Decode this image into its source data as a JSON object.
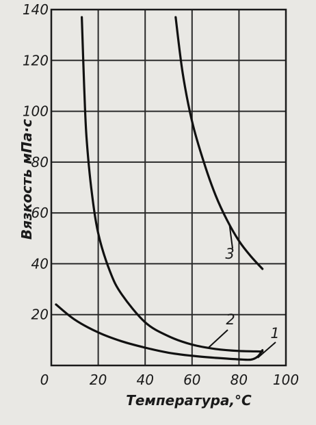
{
  "chart_data": {
    "type": "line",
    "title": "",
    "xlabel": "Температура,°С",
    "ylabel": "Вязкость мПа·с",
    "xlim": [
      0,
      100
    ],
    "ylim": [
      0,
      140
    ],
    "x_ticks": [
      "0",
      "20",
      "40",
      "60",
      "80",
      "100"
    ],
    "y_ticks": [
      "20",
      "40",
      "60",
      "80",
      "100",
      "120",
      "140"
    ],
    "grid": true,
    "legend": "none",
    "series": [
      {
        "name": "1",
        "x": [
          2,
          10,
          20,
          30,
          40,
          50,
          60,
          70,
          80,
          85,
          88,
          90
        ],
        "y": [
          24,
          18,
          13,
          9.5,
          7,
          5,
          3.8,
          3,
          2.4,
          2.3,
          3.5,
          6
        ]
      },
      {
        "name": "2",
        "x": [
          13,
          14,
          15,
          17,
          20,
          25,
          30,
          40,
          50,
          60,
          70,
          80,
          90
        ],
        "y": [
          137,
          110,
          90,
          70,
          52,
          37,
          28,
          17,
          11.5,
          8.2,
          6.5,
          5.7,
          5.5
        ]
      },
      {
        "name": "3",
        "x": [
          53,
          56,
          60,
          65,
          70,
          75,
          80,
          85,
          90
        ],
        "y": [
          137,
          115,
          96,
          80,
          67,
          57,
          49,
          43,
          38
        ]
      }
    ]
  }
}
